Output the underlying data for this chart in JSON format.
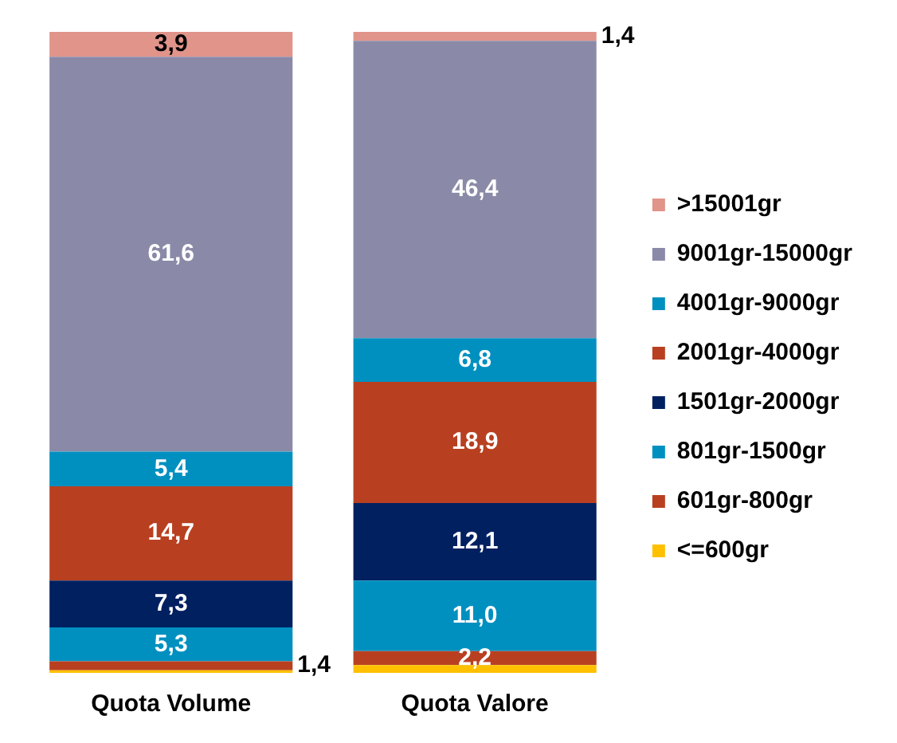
{
  "chart_data": {
    "type": "bar",
    "stacked": true,
    "legend": "right",
    "categories": [
      "Quota Volume",
      "Quota Valore"
    ],
    "series": [
      {
        "name": "<=600gr",
        "color": "#ffc000",
        "values": [
          0.4,
          1.2
        ],
        "value_labels": [
          null,
          null
        ]
      },
      {
        "name": "601gr-800gr",
        "color": "#b84020",
        "values": [
          1.4,
          2.2
        ],
        "value_labels": [
          "1,4",
          "2,2"
        ]
      },
      {
        "name": "801gr-1500gr",
        "color": "#0090c0",
        "values": [
          5.3,
          11.0
        ],
        "value_labels": [
          "5,3",
          "11,0"
        ]
      },
      {
        "name": "1501gr-2000gr",
        "color": "#002060",
        "values": [
          7.3,
          12.1
        ],
        "value_labels": [
          "7,3",
          "12,1"
        ]
      },
      {
        "name": "2001gr-4000gr",
        "color": "#b84020",
        "values": [
          14.7,
          18.9
        ],
        "value_labels": [
          "14,7",
          "18,9"
        ]
      },
      {
        "name": "4001gr-9000gr",
        "color": "#0090c0",
        "values": [
          5.4,
          6.8
        ],
        "value_labels": [
          "5,4",
          "6,8"
        ]
      },
      {
        "name": "9001gr-15000gr",
        "color": "#8a8aa8",
        "values": [
          61.6,
          46.4
        ],
        "value_labels": [
          "61,6",
          "46,4"
        ]
      },
      {
        "name": ">15001gr",
        "color": "#e0948a",
        "values": [
          3.9,
          1.4
        ],
        "value_labels": [
          "3,9",
          "1,4"
        ]
      }
    ]
  }
}
